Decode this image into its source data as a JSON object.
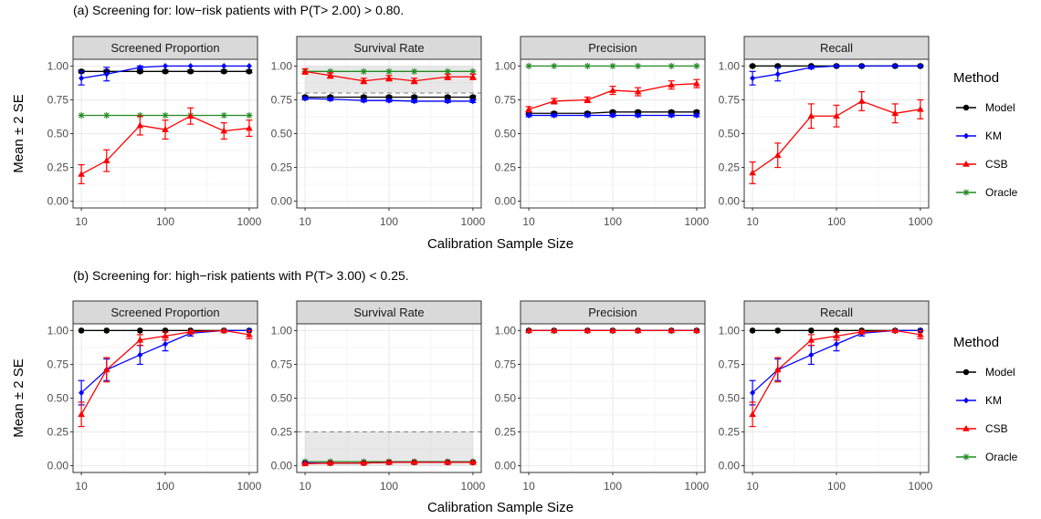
{
  "shared": {
    "x_ticks": [
      10,
      100,
      1000
    ],
    "x_tick_labels": [
      "10",
      "100",
      "1000"
    ],
    "y_ticks": [
      0,
      0.25,
      0.5,
      0.75,
      1
    ],
    "y_tick_labels": [
      "0.00",
      "0.25",
      "0.50",
      "0.75",
      "1.00"
    ],
    "ylabel": "Mean ± 2 SE",
    "xlabel": "Calibration Sample Size",
    "legend_title": "Method",
    "x_scale": "log",
    "colors": {
      "Model": "#000000",
      "KM": "#0000ff",
      "CSB": "#ff0000",
      "Oracle": "#228b22"
    },
    "markers": {
      "Model": "circle",
      "KM": "diamond",
      "CSB": "triangle",
      "Oracle": "asterisk"
    }
  },
  "chart_data": [
    {
      "type": "line",
      "title": "(a) Screening for: low−risk patients with P(T> 2.00) > 0.80.",
      "x": [
        10,
        20,
        50,
        100,
        200,
        500,
        1000
      ],
      "panels": [
        {
          "name": "Screened Proportion",
          "series": [
            {
              "name": "Model",
              "values": [
                0.96,
                0.96,
                0.96,
                0.96,
                0.96,
                0.96,
                0.96
              ],
              "err": [
                0.01,
                0.01,
                0.01,
                0.01,
                0.01,
                0.01,
                0.01
              ]
            },
            {
              "name": "KM",
              "values": [
                0.91,
                0.94,
                0.99,
                1.0,
                1.0,
                1.0,
                1.0
              ],
              "err": [
                0.05,
                0.05,
                0.01,
                0,
                0,
                0,
                0
              ]
            },
            {
              "name": "CSB",
              "values": [
                0.2,
                0.3,
                0.56,
                0.53,
                0.63,
                0.52,
                0.54
              ],
              "err": [
                0.07,
                0.08,
                0.07,
                0.07,
                0.06,
                0.06,
                0.06
              ]
            },
            {
              "name": "Oracle",
              "values": [
                0.635,
                0.635,
                0.635,
                0.635,
                0.635,
                0.635,
                0.635
              ],
              "err": [
                0,
                0,
                0,
                0,
                0,
                0,
                0
              ]
            }
          ]
        },
        {
          "name": "Survival Rate",
          "band": [
            0.8,
            1.0
          ],
          "hline": 0.8,
          "series": [
            {
              "name": "Model",
              "values": [
                0.77,
                0.77,
                0.77,
                0.77,
                0.77,
                0.77,
                0.77
              ],
              "err": [
                0.01,
                0.01,
                0.01,
                0.01,
                0.01,
                0.01,
                0.01
              ]
            },
            {
              "name": "KM",
              "values": [
                0.76,
                0.755,
                0.745,
                0.745,
                0.74,
                0.74,
                0.74
              ],
              "err": [
                0.01,
                0.01,
                0.01,
                0.01,
                0.01,
                0.01,
                0.01
              ]
            },
            {
              "name": "CSB",
              "values": [
                0.96,
                0.93,
                0.89,
                0.91,
                0.89,
                0.92,
                0.92
              ],
              "err": [
                0.02,
                0.02,
                0.02,
                0.02,
                0.02,
                0.02,
                0.02
              ]
            },
            {
              "name": "Oracle",
              "values": [
                0.96,
                0.96,
                0.96,
                0.96,
                0.96,
                0.96,
                0.96
              ],
              "err": [
                0,
                0,
                0,
                0,
                0,
                0,
                0
              ]
            }
          ]
        },
        {
          "name": "Precision",
          "series": [
            {
              "name": "Model",
              "values": [
                0.65,
                0.65,
                0.65,
                0.66,
                0.66,
                0.66,
                0.66
              ],
              "err": [
                0.01,
                0.01,
                0.01,
                0.01,
                0.01,
                0.01,
                0.01
              ]
            },
            {
              "name": "KM",
              "values": [
                0.635,
                0.635,
                0.635,
                0.635,
                0.635,
                0.635,
                0.635
              ],
              "err": [
                0.01,
                0.01,
                0.01,
                0.01,
                0.01,
                0.01,
                0.01
              ]
            },
            {
              "name": "CSB",
              "values": [
                0.68,
                0.74,
                0.75,
                0.82,
                0.81,
                0.86,
                0.87
              ],
              "err": [
                0.02,
                0.02,
                0.02,
                0.03,
                0.03,
                0.03,
                0.03
              ]
            },
            {
              "name": "Oracle",
              "values": [
                1.0,
                1.0,
                1.0,
                1.0,
                1.0,
                1.0,
                1.0
              ],
              "err": [
                0,
                0,
                0,
                0,
                0,
                0,
                0
              ]
            }
          ]
        },
        {
          "name": "Recall",
          "series": [
            {
              "name": "Model",
              "values": [
                1.0,
                1.0,
                1.0,
                1.0,
                1.0,
                1.0,
                1.0
              ],
              "err": [
                0.005,
                0.005,
                0.005,
                0.005,
                0.005,
                0.005,
                0.005
              ]
            },
            {
              "name": "KM",
              "values": [
                0.91,
                0.94,
                0.99,
                1.0,
                1.0,
                1.0,
                1.0
              ],
              "err": [
                0.05,
                0.05,
                0.01,
                0,
                0,
                0,
                0
              ]
            },
            {
              "name": "CSB",
              "values": [
                0.21,
                0.34,
                0.63,
                0.63,
                0.74,
                0.65,
                0.68
              ],
              "err": [
                0.08,
                0.09,
                0.09,
                0.08,
                0.07,
                0.07,
                0.07
              ]
            },
            {
              "name": "Oracle",
              "values": [
                1.0,
                1.0,
                1.0,
                1.0,
                1.0,
                1.0,
                1.0
              ],
              "err": [
                0,
                0,
                0,
                0,
                0,
                0,
                0
              ]
            }
          ]
        }
      ]
    },
    {
      "type": "line",
      "title": "(b) Screening for: high−risk patients with P(T> 3.00) < 0.25.",
      "x": [
        10,
        20,
        50,
        100,
        200,
        500,
        1000
      ],
      "panels": [
        {
          "name": "Screened Proportion",
          "series": [
            {
              "name": "Model",
              "values": [
                1.0,
                1.0,
                1.0,
                1.0,
                1.0,
                1.0,
                1.0
              ],
              "err": [
                0,
                0,
                0,
                0,
                0,
                0,
                0
              ]
            },
            {
              "name": "KM",
              "values": [
                0.54,
                0.71,
                0.82,
                0.9,
                0.98,
                1.0,
                1.0
              ],
              "err": [
                0.09,
                0.08,
                0.07,
                0.05,
                0.02,
                0,
                0
              ]
            },
            {
              "name": "CSB",
              "values": [
                0.38,
                0.71,
                0.93,
                0.96,
                0.99,
                1.0,
                0.97
              ],
              "err": [
                0.09,
                0.09,
                0.04,
                0.03,
                0.01,
                0,
                0.03
              ]
            },
            {
              "name": "Oracle",
              "values": [
                1.0,
                1.0,
                1.0,
                1.0,
                1.0,
                1.0,
                1.0
              ],
              "err": [
                0,
                0,
                0,
                0,
                0,
                0,
                0
              ]
            }
          ]
        },
        {
          "name": "Survival Rate",
          "band": [
            0.0,
            0.25
          ],
          "hline": 0.25,
          "series": [
            {
              "name": "Model",
              "values": [
                0.02,
                0.02,
                0.02,
                0.025,
                0.025,
                0.025,
                0.025
              ],
              "err": [
                0.005,
                0.005,
                0.005,
                0.005,
                0.005,
                0.005,
                0.005
              ]
            },
            {
              "name": "KM",
              "values": [
                0.02,
                0.02,
                0.02,
                0.025,
                0.025,
                0.025,
                0.025
              ],
              "err": [
                0.005,
                0.005,
                0.005,
                0.005,
                0.005,
                0.005,
                0.005
              ]
            },
            {
              "name": "CSB",
              "values": [
                0.015,
                0.02,
                0.02,
                0.025,
                0.025,
                0.025,
                0.025
              ],
              "err": [
                0.005,
                0.005,
                0.005,
                0.005,
                0.005,
                0.005,
                0.005
              ]
            },
            {
              "name": "Oracle",
              "values": [
                0.03,
                0.03,
                0.03,
                0.03,
                0.03,
                0.03,
                0.03
              ],
              "err": [
                0,
                0,
                0,
                0,
                0,
                0,
                0
              ]
            }
          ]
        },
        {
          "name": "Precision",
          "series": [
            {
              "name": "Model",
              "values": [
                1.0,
                1.0,
                1.0,
                1.0,
                1.0,
                1.0,
                1.0
              ],
              "err": [
                0,
                0,
                0,
                0,
                0,
                0,
                0
              ]
            },
            {
              "name": "KM",
              "values": [
                1.0,
                1.0,
                1.0,
                1.0,
                1.0,
                1.0,
                1.0
              ],
              "err": [
                0,
                0,
                0,
                0,
                0,
                0,
                0
              ]
            },
            {
              "name": "CSB",
              "values": [
                1.0,
                1.0,
                1.0,
                1.0,
                1.0,
                1.0,
                1.0
              ],
              "err": [
                0,
                0,
                0,
                0,
                0,
                0,
                0
              ]
            },
            {
              "name": "Oracle",
              "values": [
                1.0,
                1.0,
                1.0,
                1.0,
                1.0,
                1.0,
                1.0
              ],
              "err": [
                0,
                0,
                0,
                0,
                0,
                0,
                0
              ]
            }
          ]
        },
        {
          "name": "Recall",
          "series": [
            {
              "name": "Model",
              "values": [
                1.0,
                1.0,
                1.0,
                1.0,
                1.0,
                1.0,
                1.0
              ],
              "err": [
                0,
                0,
                0,
                0,
                0,
                0,
                0
              ]
            },
            {
              "name": "KM",
              "values": [
                0.54,
                0.71,
                0.82,
                0.9,
                0.98,
                1.0,
                1.0
              ],
              "err": [
                0.09,
                0.08,
                0.07,
                0.05,
                0.02,
                0,
                0
              ]
            },
            {
              "name": "CSB",
              "values": [
                0.38,
                0.71,
                0.93,
                0.96,
                0.99,
                1.0,
                0.97
              ],
              "err": [
                0.09,
                0.09,
                0.04,
                0.03,
                0.01,
                0,
                0.03
              ]
            },
            {
              "name": "Oracle",
              "values": [
                1.0,
                1.0,
                1.0,
                1.0,
                1.0,
                1.0,
                1.0
              ],
              "err": [
                0,
                0,
                0,
                0,
                0,
                0,
                0
              ]
            }
          ]
        }
      ]
    }
  ]
}
